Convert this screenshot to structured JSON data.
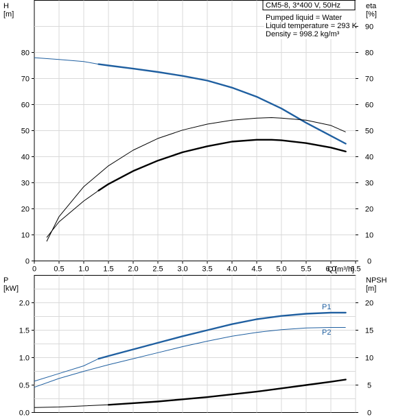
{
  "chart_data": [
    {
      "type": "line",
      "title": "CM5-8, 3*400 V, 50Hz",
      "annotations": [
        "Pumped liquid = Water",
        "Liquid temperature = 293 K",
        "Density = 998.2 kg/m³"
      ],
      "x_axis": {
        "label": "Q",
        "unit": "[m³/h]",
        "range": [
          0,
          6.5
        ],
        "ticks": [
          "0",
          "0.5",
          "1.0",
          "1.5",
          "2.0",
          "2.5",
          "3.0",
          "3.5",
          "4.0",
          "4.5",
          "5.0",
          "5.5",
          "6.0",
          "6.5"
        ]
      },
      "y_left": {
        "label": "H",
        "unit": "[m]",
        "range": [
          0,
          100
        ],
        "ticks": [
          "0",
          "10",
          "20",
          "30",
          "40",
          "50",
          "60",
          "70",
          "80"
        ]
      },
      "y_right": {
        "label": "eta",
        "unit": "[%]",
        "range": [
          0,
          100
        ],
        "ticks": [
          "0",
          "10",
          "20",
          "30",
          "40",
          "50",
          "60",
          "70",
          "80",
          "90"
        ]
      },
      "grid": true,
      "series": [
        {
          "color": "#1f5fa0",
          "axis": "left",
          "x": [
            0,
            0.5,
            1.0,
            1.3,
            1.5,
            2.0,
            2.5,
            3.0,
            3.5,
            4.0,
            4.5,
            5.0,
            5.5,
            6.0,
            6.3
          ],
          "y": [
            78,
            77.3,
            76.5,
            75.5,
            75,
            73.8,
            72.5,
            71,
            69.2,
            66.5,
            63,
            58.5,
            53,
            48,
            45
          ],
          "thick_from_x": 1.3
        },
        {
          "color": "#000000",
          "axis": "right",
          "x": [
            0.25,
            0.5,
            1.0,
            1.5,
            2.0,
            2.5,
            3.0,
            3.5,
            4.0,
            4.5,
            4.8,
            5.0,
            5.5,
            6.0,
            6.3
          ],
          "y": [
            7.5,
            17,
            28.5,
            36.5,
            42.5,
            47,
            50.2,
            52.5,
            54,
            54.8,
            55,
            54.8,
            54,
            52,
            49.5
          ]
        },
        {
          "color": "#000000",
          "axis": "right",
          "x": [
            0.25,
            0.5,
            1.0,
            1.3,
            1.5,
            2.0,
            2.5,
            3.0,
            3.5,
            4.0,
            4.5,
            4.8,
            5.0,
            5.5,
            6.0,
            6.3
          ],
          "y": [
            9,
            15,
            23,
            27,
            29.5,
            34.5,
            38.5,
            41.7,
            44,
            45.8,
            46.5,
            46.5,
            46.3,
            45.2,
            43.5,
            42
          ],
          "thick_from_x": 1.3
        }
      ]
    },
    {
      "type": "line",
      "x_axis": {
        "range": [
          0,
          6.5
        ]
      },
      "y_left": {
        "label": "P",
        "unit": "[kW]",
        "range": [
          0,
          2.5
        ],
        "ticks": [
          "0.0",
          "0.5",
          "1.0",
          "1.5",
          "2.0"
        ]
      },
      "y_right": {
        "label": "NPSH",
        "unit": "[m]",
        "range": [
          0,
          25
        ],
        "ticks": [
          "0",
          "5",
          "10",
          "15",
          "20"
        ]
      },
      "grid": true,
      "series": [
        {
          "name": "P1",
          "color": "#1f5fa0",
          "axis": "left",
          "x": [
            0,
            0.5,
            1.0,
            1.3,
            1.5,
            2.0,
            2.5,
            3.0,
            3.5,
            4.0,
            4.5,
            5.0,
            5.5,
            6.0,
            6.3
          ],
          "y": [
            0.57,
            0.71,
            0.85,
            0.98,
            1.03,
            1.15,
            1.27,
            1.39,
            1.5,
            1.61,
            1.7,
            1.76,
            1.8,
            1.82,
            1.82
          ],
          "thick_from_x": 1.3
        },
        {
          "name": "P2",
          "color": "#1f5fa0",
          "axis": "left",
          "x": [
            0,
            0.5,
            1.0,
            1.5,
            2.0,
            2.5,
            3.0,
            3.5,
            4.0,
            4.5,
            5.0,
            5.5,
            6.0,
            6.3
          ],
          "y": [
            0.46,
            0.62,
            0.75,
            0.87,
            0.98,
            1.09,
            1.2,
            1.3,
            1.39,
            1.46,
            1.51,
            1.54,
            1.55,
            1.55
          ]
        },
        {
          "color": "#000000",
          "axis": "right",
          "x": [
            0,
            0.5,
            1.0,
            1.5,
            2.0,
            2.5,
            3.0,
            3.5,
            4.0,
            4.5,
            5.0,
            5.5,
            6.0,
            6.3
          ],
          "y": [
            0.9,
            1.0,
            1.2,
            1.4,
            1.7,
            2.0,
            2.4,
            2.8,
            3.3,
            3.8,
            4.4,
            5.0,
            5.6,
            6.0
          ],
          "thick_from_x": 1.3
        }
      ]
    }
  ]
}
